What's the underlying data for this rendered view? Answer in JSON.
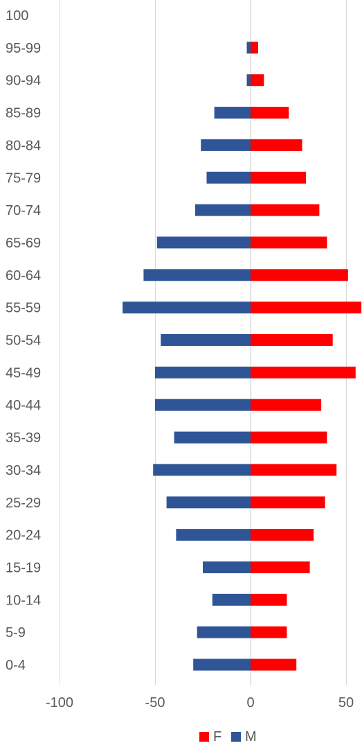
{
  "chart_data": {
    "type": "bar",
    "orientation": "horizontal",
    "layout": "population-pyramid",
    "categories": [
      "100",
      "95-99",
      "90-94",
      "85-89",
      "80-84",
      "75-79",
      "70-74",
      "65-69",
      "60-64",
      "55-59",
      "50-54",
      "45-49",
      "40-44",
      "35-39",
      "30-34",
      "25-29",
      "20-24",
      "15-19",
      "10-14",
      "5-9",
      "0-4"
    ],
    "series": [
      {
        "name": "F",
        "color": "#ff0000",
        "values": [
          0,
          4,
          7,
          20,
          27,
          29,
          36,
          40,
          51,
          58,
          43,
          55,
          37,
          40,
          45,
          39,
          33,
          31,
          19,
          19,
          24
        ]
      },
      {
        "name": "M",
        "color": "#2f5597",
        "values": [
          0,
          -2,
          -2,
          -19,
          -26,
          -23,
          -29,
          -49,
          -56,
          -67,
          -47,
          -50,
          -50,
          -40,
          -51,
          -44,
          -39,
          -25,
          -20,
          -28,
          -30
        ]
      }
    ],
    "xticks": [
      -100,
      -50,
      0,
      50
    ],
    "xlim": [
      -100,
      58
    ],
    "grid": "vertical",
    "legend": "bottom",
    "title": "",
    "xlabel": "",
    "ylabel": ""
  }
}
